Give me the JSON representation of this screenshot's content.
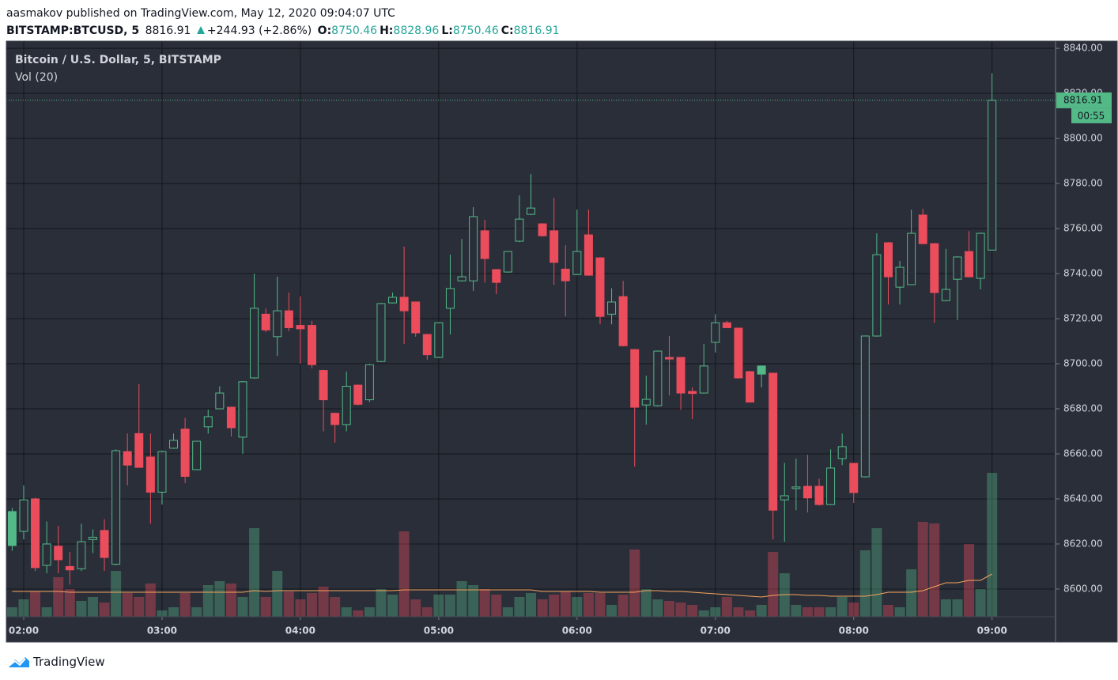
{
  "header": {
    "publisher": "aasmakov published on TradingView.com, May 12, 2020 09:04:07 UTC",
    "symbol": "BITSTAMP:BTCUSD, 5",
    "last": "8816.91",
    "change": "+244.93 (+2.86%)",
    "ohlc": [
      {
        "label": "O:",
        "value": "8750.46"
      },
      {
        "label": "H:",
        "value": "8828.96"
      },
      {
        "label": "L:",
        "value": "8750.46"
      },
      {
        "label": "C:",
        "value": "8816.91"
      }
    ]
  },
  "footer": {
    "brand": "TradingView"
  },
  "chart_data": {
    "type": "candlestick",
    "title": "Bitcoin / U.S. Dollar, 5, BITSTAMP",
    "volume_label": "Vol (20)",
    "up_color": "#53b987",
    "down_color": "#eb4d5c",
    "ma_color": "#f7a35c",
    "grid": true,
    "last_price": 8816.91,
    "last_price_label": "8816.91",
    "countdown": "00:55",
    "categories": [
      null,
      "02:00",
      null,
      null,
      null,
      null,
      null,
      null,
      null,
      null,
      null,
      null,
      null,
      "03:00",
      null,
      null,
      null,
      null,
      null,
      null,
      null,
      null,
      null,
      null,
      null,
      "04:00",
      null,
      null,
      null,
      null,
      null,
      null,
      null,
      null,
      null,
      null,
      null,
      "05:00",
      null,
      null,
      null,
      null,
      null,
      null,
      null,
      null,
      null,
      null,
      null,
      "06:00",
      null,
      null,
      null,
      null,
      null,
      null,
      null,
      null,
      null,
      null,
      null,
      "07:00",
      null,
      null,
      null,
      null,
      null,
      null,
      null,
      null,
      null,
      null,
      null,
      "08:00",
      null,
      null,
      null,
      null,
      null,
      null,
      null,
      null,
      null,
      null,
      null,
      "09:00"
    ],
    "open": [
      8634.4,
      8625.6,
      8640,
      8610.5,
      8619,
      8610,
      8609,
      8622,
      8626,
      8611,
      8661,
      8669,
      8658.6,
      8643,
      8662.5,
      8671,
      8653,
      8672,
      8680,
      8680.7,
      8667.4,
      8693.7,
      8722,
      8712,
      8723.5,
      8717,
      8717,
      8697,
      8678,
      8673,
      8690.5,
      8684,
      8701,
      8727,
      8729.5,
      8727.4,
      8713,
      8702.8,
      8724.6,
      8736.8,
      8736.8,
      8759,
      8741.8,
      8740.7,
      8754.4,
      8766.3,
      8762.1,
      8759,
      8742,
      8739.6,
      8757.2,
      8747,
      8722,
      8729.8,
      8706.3,
      8681.7,
      8681.4,
      8702.8,
      8702.8,
      8687.7,
      8687,
      8709.5,
      8718.2,
      8715.8,
      8696.5,
      8699,
      8695.8,
      8639.6,
      8644.6,
      8645.6,
      8645.6,
      8637.5,
      8657.9,
      8655.8,
      8649.8,
      8712.3,
      8753.7,
      8734,
      8735.1,
      8766,
      8753.3,
      8728,
      8737.5,
      8749.8,
      8737.9,
      8750.46
    ],
    "high": [
      8636,
      8646,
      8640.5,
      8630,
      8628,
      8616.5,
      8629,
      8626.5,
      8631,
      8662,
      8669,
      8691,
      8669,
      8661.5,
      8669,
      8676,
      8665.8,
      8679.6,
      8690,
      8681,
      8692.3,
      8740,
      8724.6,
      8738.6,
      8731.6,
      8730,
      8719,
      8697.3,
      8678.3,
      8696.5,
      8690.8,
      8700,
      8727,
      8731.6,
      8752,
      8727.6,
      8713.3,
      8718.5,
      8748.4,
      8755.4,
      8769.5,
      8763.9,
      8742,
      8750,
      8774.7,
      8784.2,
      8762.4,
      8773.7,
      8752.6,
      8768.4,
      8768.4,
      8747.3,
      8733.5,
      8736.8,
      8706.6,
      8694.7,
      8705.9,
      8712.3,
      8703,
      8689.5,
      8708.8,
      8722,
      8719,
      8716,
      8696.8,
      8699.2,
      8696,
      8656,
      8657.9,
      8659.6,
      8649,
      8662,
      8669,
      8656,
      8712.6,
      8757.9,
      8754,
      8745.6,
      8768.4,
      8768.8,
      8753.6,
      8751,
      8747.7,
      8758.9,
      8758.2,
      8828.96
    ],
    "low": [
      8617,
      8622,
      8608,
      8607,
      8607,
      8602,
      8608,
      8616,
      8608,
      8610.5,
      8646,
      8654,
      8629,
      8637.5,
      8662.2,
      8647,
      8652.8,
      8669,
      8679.8,
      8667.7,
      8660,
      8693.4,
      8714,
      8703.5,
      8714.5,
      8700,
      8698,
      8670,
      8665,
      8670,
      8681.5,
      8683,
      8700.7,
      8726.8,
      8708.8,
      8712,
      8701.8,
      8702.5,
      8713,
      8736.5,
      8732.3,
      8736,
      8730.9,
      8740.4,
      8754,
      8766,
      8756.5,
      8735,
      8721,
      8739.3,
      8739,
      8717.5,
      8717.5,
      8707.7,
      8654.4,
      8673,
      8681,
      8686,
      8679.6,
      8675.4,
      8686.8,
      8705,
      8715.8,
      8693.4,
      8682.7,
      8689.5,
      8622,
      8621,
      8635,
      8634,
      8637,
      8637.2,
      8655,
      8638.2,
      8649.5,
      8712,
      8726.3,
      8726.3,
      8735,
      8753,
      8718.2,
      8727.7,
      8719.3,
      8738.3,
      8733,
      8750.46
    ],
    "close": [
      8619.3,
      8639.6,
      8609.5,
      8620,
      8613,
      8608.5,
      8621,
      8623,
      8614,
      8661.4,
      8655,
      8654,
      8643,
      8661,
      8666,
      8650,
      8665.6,
      8676.5,
      8687,
      8671.6,
      8692,
      8724.6,
      8715,
      8723.5,
      8716,
      8715.5,
      8699.6,
      8684,
      8673,
      8690,
      8682,
      8699.6,
      8726.7,
      8729.5,
      8723.5,
      8713.7,
      8704,
      8718.2,
      8733.4,
      8738.6,
      8765.3,
      8746.7,
      8736.1,
      8749.8,
      8764.2,
      8769.1,
      8756.8,
      8745,
      8736.8,
      8749.8,
      8739.3,
      8721,
      8727.4,
      8708,
      8680.7,
      8684.2,
      8705.6,
      8702.1,
      8687,
      8686.8,
      8699,
      8718.2,
      8716,
      8693.7,
      8683,
      8695.4,
      8635,
      8641.4,
      8645.3,
      8640.4,
      8637.5,
      8653.7,
      8663.2,
      8642.8,
      8712.3,
      8748.4,
      8738.6,
      8742.8,
      8757.9,
      8753.3,
      8731.6,
      8733,
      8747.4,
      8738.6,
      8757.9,
      8816.91
    ],
    "volume": [
      12,
      22,
      32,
      12,
      50,
      35,
      20,
      25,
      18,
      58,
      30,
      25,
      42,
      8,
      12,
      30,
      12,
      40,
      45,
      42,
      25,
      112,
      25,
      58,
      32,
      22,
      30,
      38,
      25,
      12,
      8,
      12,
      35,
      28,
      108,
      22,
      12,
      28,
      28,
      45,
      40,
      35,
      28,
      12,
      25,
      30,
      22,
      28,
      32,
      25,
      30,
      30,
      15,
      28,
      85,
      35,
      22,
      20,
      18,
      15,
      8,
      12,
      25,
      12,
      8,
      15,
      82,
      55,
      15,
      12,
      12,
      12,
      25,
      18,
      84,
      112,
      15,
      12,
      60,
      120,
      118,
      22,
      22,
      92,
      35,
      182
    ],
    "volume_ma": [
      32,
      32,
      32,
      32,
      32,
      31,
      31,
      31,
      31,
      31,
      31,
      31,
      31,
      31,
      31,
      31,
      31,
      31,
      31,
      31,
      31,
      33,
      32,
      33,
      33,
      33,
      33,
      33,
      33,
      33,
      33,
      33,
      33,
      33,
      34,
      34,
      34,
      34,
      34,
      34,
      34,
      34,
      34,
      34,
      34,
      34,
      32,
      32,
      32,
      32,
      32,
      31,
      31,
      31,
      31,
      33,
      33,
      32,
      32,
      31,
      30,
      29,
      28,
      27,
      26,
      25,
      27,
      28,
      28,
      27,
      27,
      26,
      26,
      26,
      26,
      28,
      31,
      31,
      31,
      33,
      38,
      43,
      43,
      46,
      46,
      54
    ],
    "ylim": [
      8587.7,
      8843.2
    ],
    "yticks": [
      {
        "value": 8600,
        "label": "8600.00"
      },
      {
        "value": 8620,
        "label": "8620.00"
      },
      {
        "value": 8640,
        "label": "8640.00"
      },
      {
        "value": 8660,
        "label": "8660.00"
      },
      {
        "value": 8680,
        "label": "8680.00"
      },
      {
        "value": 8700,
        "label": "8700.00"
      },
      {
        "value": 8720,
        "label": "8720.00"
      },
      {
        "value": 8740,
        "label": "8740.00"
      },
      {
        "value": 8760,
        "label": "8760.00"
      },
      {
        "value": 8780,
        "label": "8780.00"
      },
      {
        "value": 8800,
        "label": "8800.00"
      },
      {
        "value": 8820,
        "label": "8820.00"
      },
      {
        "value": 8840,
        "label": "8840.00"
      }
    ]
  }
}
